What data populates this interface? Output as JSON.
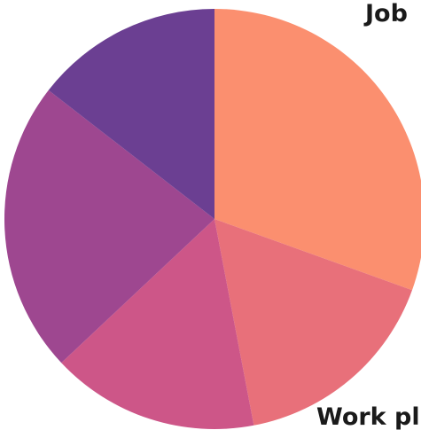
{
  "chart_data": {
    "type": "pie",
    "title": "",
    "slices": [
      {
        "label": "Job",
        "value": 30.5,
        "color": "#fb8f6f"
      },
      {
        "label": "Work pl",
        "value": 16.5,
        "color": "#e8707a"
      },
      {
        "label": "",
        "value": 16.0,
        "color": "#cd5688"
      },
      {
        "label": "",
        "value": 22.5,
        "color": "#9e4790"
      },
      {
        "label": "",
        "value": 14.5,
        "color": "#6b3f92"
      }
    ],
    "start_angle_deg": 0,
    "direction": "clockwise",
    "legend": "none"
  }
}
